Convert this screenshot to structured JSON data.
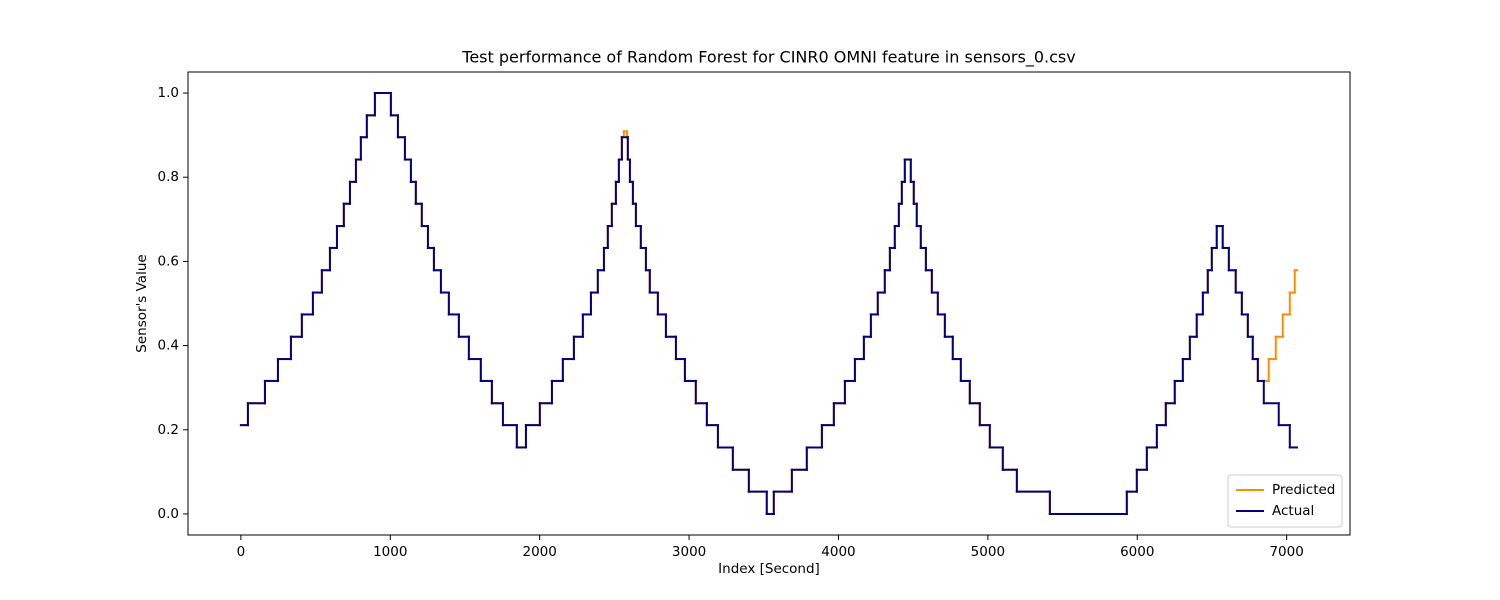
{
  "chart_data": {
    "type": "step",
    "title": "Test performance of Random Forest for CINR0 OMNI feature in sensors_0.csv",
    "xlabel": "Index [Second]",
    "ylabel": "Sensor's Value",
    "xlim": [
      -354,
      7424
    ],
    "ylim": [
      -0.05,
      1.05
    ],
    "xticks": [
      0,
      1000,
      2000,
      3000,
      4000,
      5000,
      6000,
      7000
    ],
    "yticks": [
      {
        "value": 0,
        "label": "0.0"
      },
      0.2,
      0.4,
      0.6,
      0.8,
      {
        "value": 1,
        "label": "1.0"
      }
    ],
    "grid": false,
    "legend": "lower right",
    "series": [
      {
        "name": "Predicted",
        "color": "#ff8c00",
        "x": [
          0,
          47,
          161,
          248,
          335,
          408,
          482,
          542,
          596,
          643,
          689,
          730,
          770,
          803,
          843,
          897,
          1004,
          1051,
          1098,
          1138,
          1171,
          1211,
          1252,
          1292,
          1339,
          1392,
          1459,
          1526,
          1606,
          1680,
          1754,
          1847,
          1908,
          2001,
          2082,
          2155,
          2229,
          2289,
          2343,
          2389,
          2430,
          2456,
          2483,
          2510,
          2530,
          2550,
          2563,
          2584,
          2590,
          2604,
          2624,
          2644,
          2677,
          2711,
          2737,
          2791,
          2845,
          2912,
          2972,
          3045,
          3119,
          3193,
          3293,
          3400,
          3520,
          3567,
          3688,
          3788,
          3889,
          3969,
          4043,
          4110,
          4170,
          4217,
          4263,
          4310,
          4344,
          4377,
          4404,
          4424,
          4444,
          4484,
          4504,
          4524,
          4551,
          4585,
          4625,
          4665,
          4712,
          4765,
          4819,
          4879,
          4946,
          5013,
          5100,
          5194,
          5415,
          5930,
          5997,
          6064,
          6131,
          6191,
          6251,
          6305,
          6352,
          6398,
          6439,
          6472,
          6499,
          6532,
          6572,
          6613,
          6659,
          6700,
          6740,
          6773,
          6807,
          6880,
          6927,
          6974,
          7021,
          7054,
          7068
        ],
        "values": [
          0.211,
          0.263,
          0.316,
          0.368,
          0.421,
          0.474,
          0.526,
          0.579,
          0.632,
          0.684,
          0.737,
          0.789,
          0.842,
          0.895,
          0.947,
          1.0,
          0.947,
          0.895,
          0.842,
          0.789,
          0.737,
          0.684,
          0.632,
          0.579,
          0.526,
          0.474,
          0.421,
          0.368,
          0.316,
          0.263,
          0.211,
          0.158,
          0.211,
          0.263,
          0.316,
          0.368,
          0.421,
          0.474,
          0.526,
          0.579,
          0.632,
          0.684,
          0.737,
          0.789,
          0.842,
          0.895,
          0.909,
          0.895,
          0.842,
          0.789,
          0.737,
          0.684,
          0.632,
          0.579,
          0.526,
          0.474,
          0.421,
          0.368,
          0.316,
          0.263,
          0.211,
          0.158,
          0.105,
          0.053,
          0.0,
          0.053,
          0.105,
          0.158,
          0.211,
          0.263,
          0.316,
          0.368,
          0.421,
          0.474,
          0.526,
          0.579,
          0.632,
          0.684,
          0.737,
          0.789,
          0.842,
          0.789,
          0.737,
          0.684,
          0.632,
          0.579,
          0.526,
          0.474,
          0.421,
          0.368,
          0.316,
          0.263,
          0.211,
          0.158,
          0.105,
          0.053,
          0.0,
          0.053,
          0.105,
          0.158,
          0.211,
          0.263,
          0.316,
          0.368,
          0.421,
          0.474,
          0.526,
          0.579,
          0.632,
          0.684,
          0.632,
          0.579,
          0.526,
          0.474,
          0.421,
          0.368,
          0.316,
          0.368,
          0.421,
          0.474,
          0.526,
          0.579,
          0.579
        ]
      },
      {
        "name": "Actual",
        "color": "#000080",
        "x": [
          0,
          47,
          161,
          248,
          335,
          408,
          482,
          542,
          596,
          643,
          689,
          730,
          770,
          803,
          843,
          897,
          1004,
          1051,
          1098,
          1138,
          1171,
          1211,
          1252,
          1292,
          1339,
          1392,
          1459,
          1526,
          1606,
          1680,
          1754,
          1847,
          1908,
          2001,
          2082,
          2155,
          2229,
          2289,
          2343,
          2389,
          2430,
          2456,
          2483,
          2510,
          2530,
          2550,
          2590,
          2604,
          2624,
          2644,
          2677,
          2711,
          2737,
          2791,
          2845,
          2912,
          2972,
          3045,
          3119,
          3193,
          3293,
          3400,
          3520,
          3567,
          3688,
          3788,
          3889,
          3969,
          4043,
          4110,
          4170,
          4217,
          4263,
          4310,
          4344,
          4377,
          4404,
          4424,
          4444,
          4484,
          4504,
          4524,
          4551,
          4585,
          4625,
          4665,
          4712,
          4765,
          4819,
          4879,
          4946,
          5013,
          5100,
          5194,
          5415,
          5930,
          5997,
          6064,
          6131,
          6191,
          6251,
          6305,
          6352,
          6398,
          6439,
          6472,
          6499,
          6532,
          6572,
          6613,
          6659,
          6700,
          6740,
          6773,
          6807,
          6847,
          6947,
          7021,
          7068
        ],
        "values": [
          0.211,
          0.263,
          0.316,
          0.368,
          0.421,
          0.474,
          0.526,
          0.579,
          0.632,
          0.684,
          0.737,
          0.789,
          0.842,
          0.895,
          0.947,
          1.0,
          0.947,
          0.895,
          0.842,
          0.789,
          0.737,
          0.684,
          0.632,
          0.579,
          0.526,
          0.474,
          0.421,
          0.368,
          0.316,
          0.263,
          0.211,
          0.158,
          0.211,
          0.263,
          0.316,
          0.368,
          0.421,
          0.474,
          0.526,
          0.579,
          0.632,
          0.684,
          0.737,
          0.789,
          0.842,
          0.895,
          0.842,
          0.789,
          0.737,
          0.684,
          0.632,
          0.579,
          0.526,
          0.474,
          0.421,
          0.368,
          0.316,
          0.263,
          0.211,
          0.158,
          0.105,
          0.053,
          0.0,
          0.053,
          0.105,
          0.158,
          0.211,
          0.263,
          0.316,
          0.368,
          0.421,
          0.474,
          0.526,
          0.579,
          0.632,
          0.684,
          0.737,
          0.789,
          0.842,
          0.789,
          0.737,
          0.684,
          0.632,
          0.579,
          0.526,
          0.474,
          0.421,
          0.368,
          0.316,
          0.263,
          0.211,
          0.158,
          0.105,
          0.053,
          0.0,
          0.053,
          0.105,
          0.158,
          0.211,
          0.263,
          0.316,
          0.368,
          0.421,
          0.474,
          0.526,
          0.579,
          0.632,
          0.684,
          0.632,
          0.579,
          0.526,
          0.474,
          0.421,
          0.368,
          0.316,
          0.263,
          0.211,
          0.158,
          0.158
        ]
      }
    ]
  }
}
